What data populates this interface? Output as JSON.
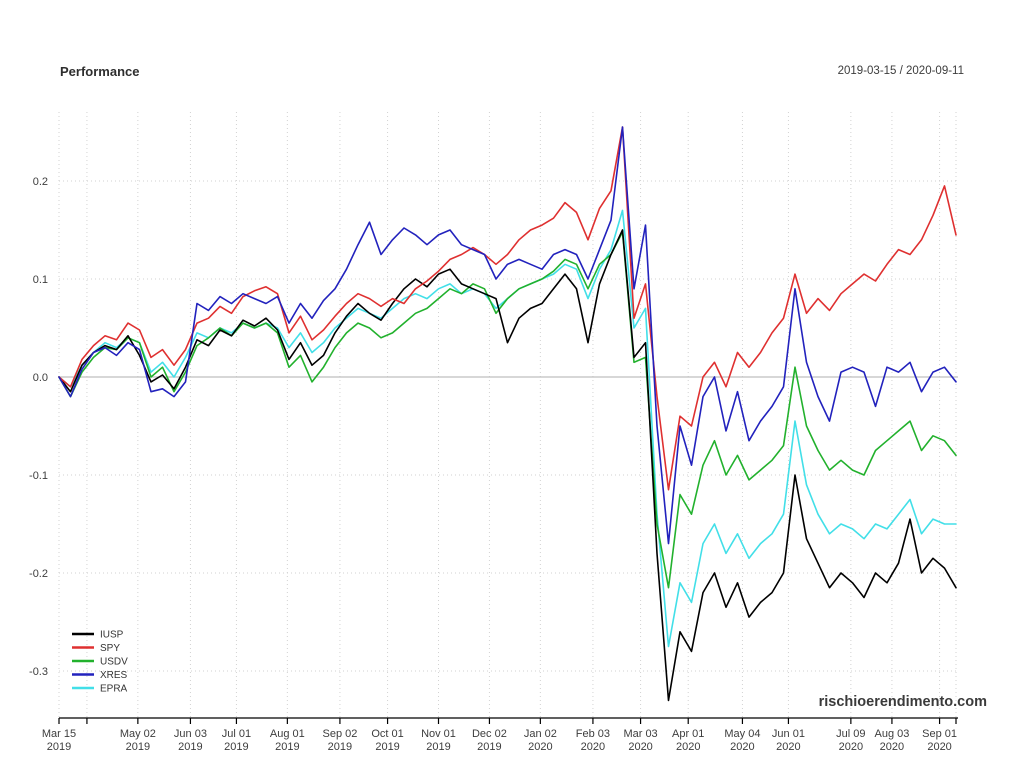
{
  "header": {
    "title": "Performance",
    "range": "2019-03-15 / 2020-09-11"
  },
  "watermark": "rischioerendimento.com",
  "chart_data": {
    "type": "line",
    "title": "Performance",
    "date_range": "2019-03-15 / 2020-09-11",
    "x_unit": "days since 2019-03-15",
    "end_day": 546,
    "sample_interval_days": 7,
    "ylim": [
      -0.35,
      0.27
    ],
    "grid": "dotted",
    "zero_line": true,
    "legend_position": "bottom-left",
    "yticks": [
      {
        "v": 0.2,
        "label": "0.2"
      },
      {
        "v": 0.1,
        "label": "0.1"
      },
      {
        "v": 0.0,
        "label": "0.0"
      },
      {
        "v": -0.1,
        "label": "-0.1"
      },
      {
        "v": -0.2,
        "label": "-0.2"
      },
      {
        "v": -0.3,
        "label": "-0.3"
      }
    ],
    "x_ticks": [
      {
        "day": 0,
        "l1": "Mar 15",
        "l2": "2019"
      },
      {
        "day": 48,
        "l1": "May 02",
        "l2": "2019"
      },
      {
        "day": 80,
        "l1": "Jun 03",
        "l2": "2019"
      },
      {
        "day": 108,
        "l1": "Jul 01",
        "l2": "2019"
      },
      {
        "day": 139,
        "l1": "Aug 01",
        "l2": "2019"
      },
      {
        "day": 171,
        "l1": "Sep 02",
        "l2": "2019"
      },
      {
        "day": 200,
        "l1": "Oct 01",
        "l2": "2019"
      },
      {
        "day": 231,
        "l1": "Nov 01",
        "l2": "2019"
      },
      {
        "day": 262,
        "l1": "Dec 02",
        "l2": "2019"
      },
      {
        "day": 293,
        "l1": "Jan 02",
        "l2": "2020"
      },
      {
        "day": 325,
        "l1": "Feb 03",
        "l2": "2020"
      },
      {
        "day": 354,
        "l1": "Mar 03",
        "l2": "2020"
      },
      {
        "day": 383,
        "l1": "Apr 01",
        "l2": "2020"
      },
      {
        "day": 416,
        "l1": "May 04",
        "l2": "2020"
      },
      {
        "day": 444,
        "l1": "Jun 01",
        "l2": "2020"
      },
      {
        "day": 482,
        "l1": "Jul 09",
        "l2": "2020"
      },
      {
        "day": 507,
        "l1": "Aug 03",
        "l2": "2020"
      },
      {
        "day": 536,
        "l1": "Sep 01",
        "l2": "2020"
      }
    ],
    "unlabeled_tick_days": [
      17,
      546
    ],
    "palette": {
      "grid": "#d2d2d2",
      "zero_line": "#bfbfbf",
      "axis": "#000000",
      "text": "#3d3d3d"
    },
    "draw_order": [
      "EPRA",
      "USDV",
      "IUSP",
      "SPY",
      "XRES"
    ],
    "series": [
      {
        "name": "IUSP",
        "color": "#000000",
        "values": [
          0,
          -0.015,
          0.012,
          0.025,
          0.032,
          0.028,
          0.042,
          0.022,
          -0.005,
          0.002,
          -0.012,
          0.01,
          0.038,
          0.032,
          0.048,
          0.042,
          0.058,
          0.052,
          0.06,
          0.048,
          0.018,
          0.035,
          0.012,
          0.022,
          0.045,
          0.062,
          0.075,
          0.065,
          0.058,
          0.075,
          0.09,
          0.1,
          0.092,
          0.105,
          0.11,
          0.095,
          0.09,
          0.085,
          0.08,
          0.035,
          0.06,
          0.07,
          0.075,
          0.09,
          0.105,
          0.09,
          0.035,
          0.095,
          0.125,
          0.15,
          0.02,
          0.035,
          -0.18,
          -0.33,
          -0.26,
          -0.28,
          -0.22,
          -0.2,
          -0.235,
          -0.21,
          -0.245,
          -0.23,
          -0.22,
          -0.2,
          -0.1,
          -0.165,
          -0.19,
          -0.215,
          -0.2,
          -0.21,
          -0.225,
          -0.2,
          -0.21,
          -0.19,
          -0.145,
          -0.2,
          -0.185,
          -0.195,
          -0.215
        ]
      },
      {
        "name": "SPY",
        "color": "#df3030",
        "values": [
          0,
          -0.01,
          0.018,
          0.032,
          0.042,
          0.038,
          0.055,
          0.048,
          0.02,
          0.028,
          0.012,
          0.028,
          0.055,
          0.06,
          0.072,
          0.065,
          0.082,
          0.088,
          0.092,
          0.085,
          0.045,
          0.062,
          0.038,
          0.048,
          0.062,
          0.075,
          0.085,
          0.08,
          0.072,
          0.08,
          0.075,
          0.09,
          0.098,
          0.108,
          0.12,
          0.125,
          0.132,
          0.125,
          0.115,
          0.125,
          0.14,
          0.15,
          0.155,
          0.162,
          0.178,
          0.168,
          0.14,
          0.172,
          0.19,
          0.255,
          0.06,
          0.095,
          -0.02,
          -0.115,
          -0.04,
          -0.05,
          0.0,
          0.015,
          -0.01,
          0.025,
          0.01,
          0.025,
          0.045,
          0.06,
          0.105,
          0.065,
          0.08,
          0.068,
          0.085,
          0.095,
          0.105,
          0.098,
          0.115,
          0.13,
          0.125,
          0.14,
          0.165,
          0.195,
          0.145
        ]
      },
      {
        "name": "USDV",
        "color": "#22b12d",
        "values": [
          0,
          -0.02,
          0.005,
          0.02,
          0.03,
          0.028,
          0.04,
          0.035,
          0.0,
          0.01,
          -0.015,
          0.005,
          0.032,
          0.04,
          0.05,
          0.042,
          0.055,
          0.05,
          0.055,
          0.045,
          0.01,
          0.022,
          -0.005,
          0.01,
          0.03,
          0.045,
          0.055,
          0.05,
          0.04,
          0.045,
          0.055,
          0.065,
          0.07,
          0.08,
          0.09,
          0.085,
          0.095,
          0.09,
          0.065,
          0.08,
          0.09,
          0.095,
          0.1,
          0.108,
          0.12,
          0.115,
          0.09,
          0.115,
          0.125,
          0.148,
          0.015,
          0.02,
          -0.15,
          -0.215,
          -0.12,
          -0.14,
          -0.09,
          -0.065,
          -0.1,
          -0.08,
          -0.105,
          -0.095,
          -0.085,
          -0.07,
          0.01,
          -0.05,
          -0.075,
          -0.095,
          -0.085,
          -0.095,
          -0.1,
          -0.075,
          -0.065,
          -0.055,
          -0.045,
          -0.075,
          -0.06,
          -0.065,
          -0.08
        ]
      },
      {
        "name": "XRES",
        "color": "#2222bd",
        "values": [
          0,
          -0.02,
          0.008,
          0.025,
          0.03,
          0.022,
          0.035,
          0.028,
          -0.015,
          -0.012,
          -0.02,
          -0.005,
          0.075,
          0.068,
          0.082,
          0.075,
          0.085,
          0.08,
          0.075,
          0.082,
          0.055,
          0.075,
          0.06,
          0.078,
          0.09,
          0.11,
          0.135,
          0.158,
          0.125,
          0.14,
          0.152,
          0.145,
          0.135,
          0.145,
          0.15,
          0.135,
          0.13,
          0.125,
          0.1,
          0.115,
          0.12,
          0.115,
          0.11,
          0.125,
          0.13,
          0.125,
          0.1,
          0.13,
          0.16,
          0.255,
          0.09,
          0.155,
          -0.05,
          -0.17,
          -0.05,
          -0.09,
          -0.02,
          0.0,
          -0.055,
          -0.015,
          -0.065,
          -0.045,
          -0.03,
          -0.01,
          0.09,
          0.015,
          -0.02,
          -0.045,
          0.005,
          0.01,
          0.005,
          -0.03,
          0.01,
          0.005,
          0.015,
          -0.015,
          0.005,
          0.01,
          -0.005
        ]
      },
      {
        "name": "EPRA",
        "color": "#42dfe8",
        "values": [
          0,
          -0.01,
          0.012,
          0.025,
          0.035,
          0.03,
          0.04,
          0.035,
          0.005,
          0.015,
          0.0,
          0.02,
          0.045,
          0.04,
          0.05,
          0.045,
          0.055,
          0.05,
          0.055,
          0.05,
          0.03,
          0.045,
          0.025,
          0.035,
          0.05,
          0.06,
          0.07,
          0.065,
          0.06,
          0.07,
          0.08,
          0.085,
          0.08,
          0.09,
          0.095,
          0.085,
          0.09,
          0.085,
          0.07,
          0.08,
          0.09,
          0.095,
          0.1,
          0.105,
          0.115,
          0.11,
          0.08,
          0.11,
          0.13,
          0.17,
          0.05,
          0.07,
          -0.14,
          -0.275,
          -0.21,
          -0.23,
          -0.17,
          -0.15,
          -0.18,
          -0.16,
          -0.185,
          -0.17,
          -0.16,
          -0.14,
          -0.045,
          -0.11,
          -0.14,
          -0.16,
          -0.15,
          -0.155,
          -0.165,
          -0.15,
          -0.155,
          -0.14,
          -0.125,
          -0.16,
          -0.145,
          -0.15,
          -0.15
        ]
      }
    ]
  }
}
